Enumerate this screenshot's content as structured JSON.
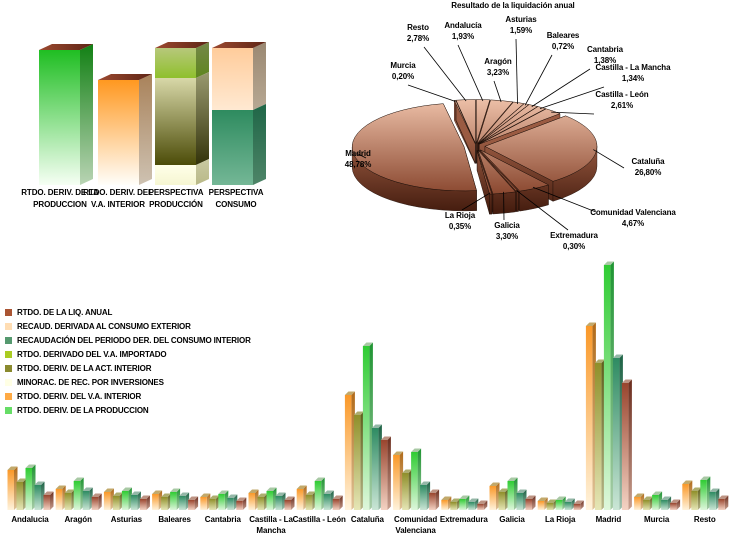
{
  "page": {
    "background": "#FFFFFF"
  },
  "chart_data": [
    {
      "id": "stacked",
      "type": "bar",
      "variant": "3d-stacked-gradient-columns",
      "title": "",
      "note": "No value axis shown; segment heights are relative units read from pixels.",
      "categories": [
        "RTDO. DERIV. DE LA PRODUCCION",
        "RTDO. DERIV. DEL V.A. INTERIOR",
        "PERSPECTIVA PRODUCCIÓN",
        "PERSPECTIVA CONSUMO"
      ],
      "category_lines": [
        [
          "RTDO. DERIV. DE LA",
          "PRODUCCION"
        ],
        [
          "RTDO. DERIV. DEL",
          "V.A. INTERIOR"
        ],
        [
          "PERSPECTIVA",
          "PRODUCCIÓN"
        ],
        [
          "PERSPECTIVA",
          "CONSUMO"
        ]
      ],
      "cap_gradient": [
        "#9C4A30",
        "#5E2415"
      ],
      "bars": [
        {
          "segments": [
            {
              "name": "verde",
              "h": 135,
              "front": [
                "#1FBE22",
                "#F6FFF4"
              ],
              "side": [
                "#128014",
                "#B9D4B4"
              ]
            }
          ]
        },
        {
          "segments": [
            {
              "name": "naranja",
              "h": 105,
              "front": [
                "#FF9820",
                "#FFFEFA"
              ],
              "side": [
                "#A9825A",
                "#CEC2B2"
              ]
            }
          ]
        },
        {
          "segments": [
            {
              "name": "verde-amarillo",
              "h": 30,
              "front": [
                "#B7C87B",
                "#8FC02C"
              ],
              "side": [
                "#76874A",
                "#5E861E"
              ]
            },
            {
              "name": "oliva",
              "h": 87,
              "front": [
                "#D8D8A8",
                "#4C4C08"
              ],
              "side": [
                "#9A9A70",
                "#33330A"
              ]
            },
            {
              "name": "crema",
              "h": 20,
              "front": [
                "#FFFFE8",
                "#F6F6D2"
              ],
              "side": [
                "#C9C9A2",
                "#B9B987"
              ]
            }
          ]
        },
        {
          "segments": [
            {
              "name": "melocoton",
              "h": 62,
              "front": [
                "#FFCC9B",
                "#FFE9D2"
              ],
              "side": [
                "#9A8872",
                "#B7A893"
              ]
            },
            {
              "name": "verde-mar",
              "h": 75,
              "front": [
                "#2E8B5F",
                "#74B796"
              ],
              "side": [
                "#1F6647",
                "#4E8568"
              ]
            }
          ]
        }
      ]
    },
    {
      "id": "pie",
      "type": "pie",
      "variant": "3d-exploded",
      "title": "Resultado de la liquidación anual",
      "unit": "%",
      "colors": {
        "top": [
          "#F2C6AE",
          "#8A4830"
        ],
        "wall": [
          "#9A5B42",
          "#471E10"
        ],
        "outline": "#1A0D07"
      },
      "slices": [
        {
          "name": "Andalucía",
          "value": 1.93,
          "label": "1,93%"
        },
        {
          "name": "Aragón",
          "value": 3.23,
          "label": "3,23%"
        },
        {
          "name": "Asturias",
          "value": 1.59,
          "label": "1,59%"
        },
        {
          "name": "Baleares",
          "value": 0.72,
          "label": "0,72%"
        },
        {
          "name": "Cantabria",
          "value": 1.38,
          "label": "1,38%"
        },
        {
          "name": "Castilla - La Mancha",
          "value": 1.34,
          "label": "1,34%"
        },
        {
          "name": "Castilla - León",
          "value": 2.61,
          "label": "2,61%"
        },
        {
          "name": "Cataluña",
          "value": 26.8,
          "label": "26,80%"
        },
        {
          "name": "Comunidad Valenciana",
          "value": 4.67,
          "label": "4,67%"
        },
        {
          "name": "Extremadura",
          "value": 0.3,
          "label": "0,30%"
        },
        {
          "name": "Galicia",
          "value": 3.3,
          "label": "3,30%"
        },
        {
          "name": "La Rioja",
          "value": 0.35,
          "label": "0,35%"
        },
        {
          "name": "Madrid",
          "value": 48.78,
          "label": "48,78%"
        },
        {
          "name": "Murcia",
          "value": 0.2,
          "label": "0,20%"
        },
        {
          "name": "Resto",
          "value": 2.78,
          "label": "2,78%"
        }
      ]
    },
    {
      "id": "grouped",
      "type": "bar",
      "variant": "3d-grouped-gradient-columns",
      "title": "",
      "note": "No value axis shown; values are relative units estimated from bar pixel heights.",
      "categories": [
        "Andalucia",
        "Aragón",
        "Asturias",
        "Baleares",
        "Cantabria",
        "Castilla - La Mancha",
        "Castilla - León",
        "Cataluña",
        "Comunidad Valenciana",
        "Extremadura",
        "Galicia",
        "La Rioja",
        "Madrid",
        "Murcia",
        "Resto"
      ],
      "ylim": [
        0,
        250
      ],
      "series": [
        {
          "name": "RTDO. DERIV. DEL V.A. INTERIOR",
          "front": [
            "#FA9828",
            "#FFF3DC"
          ],
          "side": [
            "#B06A1A",
            "#E0C49A"
          ],
          "cap": "#C2A96B",
          "values": [
            40,
            21,
            18,
            16,
            13,
            17,
            21,
            115,
            55,
            10,
            24,
            9,
            184,
            13,
            26
          ]
        },
        {
          "name": "RTDO. DERIV. DE LA ACT. INTERIOR",
          "front": [
            "#8F8F2A",
            "#E6E6B6"
          ],
          "side": [
            "#5E5E1C",
            "#B8B88A"
          ],
          "cap": "#ADAD6E",
          "values": [
            28,
            17,
            14,
            13,
            11,
            13,
            15,
            95,
            37,
            8,
            18,
            7,
            147,
            10,
            19
          ]
        },
        {
          "name": "RTDO. DERIV. DE LA PRODUCCION",
          "front": [
            "#2FCC33",
            "#DFF7DC"
          ],
          "side": [
            "#1E9432",
            "#A8CCA8"
          ],
          "cap": "#A8C9A4",
          "values": [
            42,
            29,
            19,
            18,
            16,
            19,
            29,
            164,
            58,
            11,
            29,
            10,
            245,
            15,
            30
          ]
        },
        {
          "name": "RECAUDACIÓN DEL PERIODO DER. DEL CONSUMO INTERIOR",
          "front": [
            "#2E8B62",
            "#CBE6D6"
          ],
          "side": [
            "#1D6245",
            "#9CBFAC"
          ],
          "cap": "#94B7A7",
          "values": [
            25,
            19,
            15,
            14,
            12,
            14,
            16,
            82,
            25,
            8,
            17,
            8,
            152,
            10,
            18
          ]
        },
        {
          "name": "RTDO. DE LA LIQ. ANUAL",
          "front": [
            "#99452E",
            "#F4D3C4"
          ],
          "side": [
            "#6B2D1E",
            "#C79E8E"
          ],
          "cap": "#BD9383",
          "values": [
            15,
            13,
            11,
            10,
            9,
            10,
            11,
            70,
            17,
            6,
            11,
            6,
            127,
            7,
            11
          ]
        }
      ],
      "series_not_visible": [
        "RECAUD. DERIVADA AL CONSUMO EXTERIOR",
        "RTDO. DERIVADO DEL V.A. IMPORTADO",
        "MINORAC. DE REC. POR INVERSIONES"
      ],
      "legend": [
        {
          "label": "RTDO. DE LA LIQ. ANUAL",
          "color": "#AA5533"
        },
        {
          "label": "RECAUD. DERIVADA AL CONSUMO EXTERIOR",
          "color": "#FFDDB3"
        },
        {
          "label": "RECAUDACIÓN DEL PERIODO DER. DEL CONSUMO INTERIOR",
          "color": "#55996F"
        },
        {
          "label": "RTDO. DERIVADO DEL V.A. IMPORTADO",
          "color": "#AACC22"
        },
        {
          "label": "RTDO. DERIV. DE LA ACT. INTERIOR",
          "color": "#8A8A2E"
        },
        {
          "label": "MINORAC. DE REC. POR INVERSIONES",
          "color": "#FFFFE5"
        },
        {
          "label": "RTDO. DERIV. DEL V.A. INTERIOR",
          "color": "#FFAA44"
        },
        {
          "label": "RTDO. DERIV. DE LA PRODUCCION",
          "color": "#66DD66"
        }
      ]
    }
  ]
}
